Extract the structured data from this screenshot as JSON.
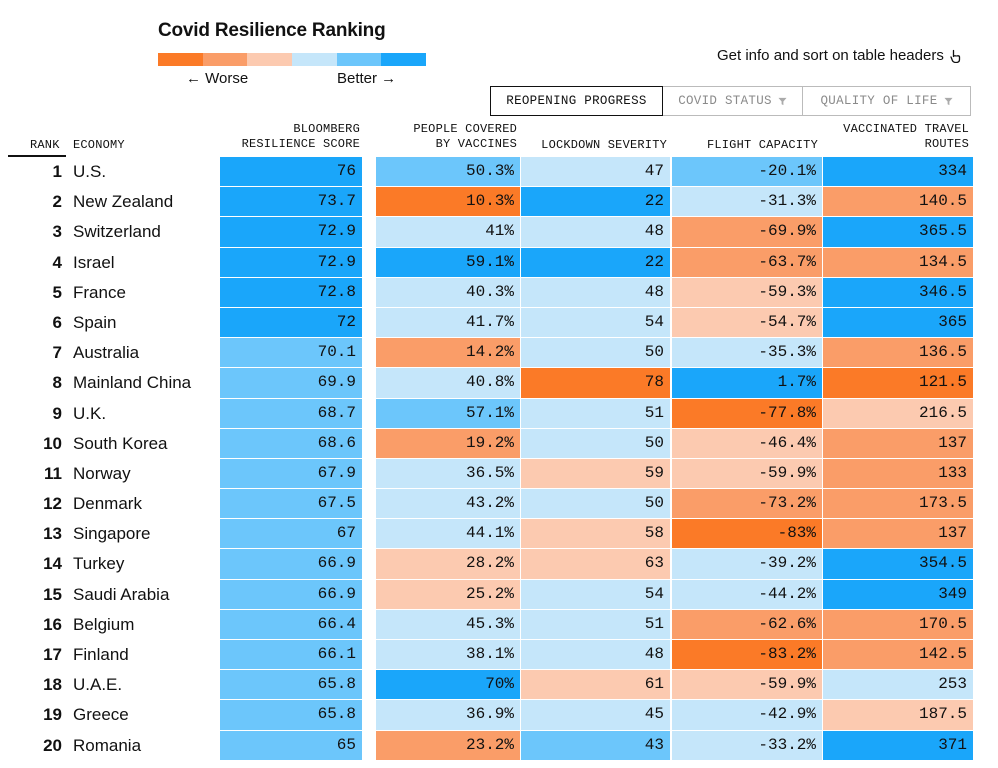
{
  "title": "Covid Resilience Ranking",
  "legend": {
    "colors": [
      "#fb7a27",
      "#fa9d68",
      "#fccab0",
      "#c5e6fa",
      "#6cc6fb",
      "#1aa6fa"
    ],
    "worse_label": "← Worse",
    "better_label": "Better →"
  },
  "hint": "Get info and sort on table headers",
  "tabs": [
    {
      "label": "REOPENING PROGRESS",
      "active": true
    },
    {
      "label": "COVID STATUS",
      "active": false
    },
    {
      "label": "QUALITY OF LIFE",
      "active": false
    }
  ],
  "headers": {
    "rank": "RANK",
    "economy": "ECONOMY",
    "score_l1": "BLOOMBERG",
    "score_l2": "RESILIENCE SCORE",
    "vax_l1": "PEOPLE COVERED",
    "vax_l2": "BY VACCINES",
    "lockdown": "LOCKDOWN SEVERITY",
    "flight": "FLIGHT CAPACITY",
    "routes_l1": "VACCINATED TRAVEL",
    "routes_l2": "ROUTES"
  },
  "palette": {
    "o1": "#fb7a27",
    "o2": "#fa9d68",
    "o3": "#fccab0",
    "b1": "#c5e6fa",
    "b2": "#6cc6fb",
    "b3": "#1aa6fa"
  },
  "rows": [
    {
      "rank": "1",
      "economy": "U.S.",
      "score": "76",
      "score_c": "b3",
      "vax": "50.3%",
      "vax_c": "b2",
      "lock": "47",
      "lock_c": "b1",
      "flight": "-20.1%",
      "flight_c": "b2",
      "routes": "334",
      "routes_c": "b3"
    },
    {
      "rank": "2",
      "economy": "New Zealand",
      "score": "73.7",
      "score_c": "b3",
      "vax": "10.3%",
      "vax_c": "o1",
      "lock": "22",
      "lock_c": "b3",
      "flight": "-31.3%",
      "flight_c": "b1",
      "routes": "140.5",
      "routes_c": "o2"
    },
    {
      "rank": "3",
      "economy": "Switzerland",
      "score": "72.9",
      "score_c": "b3",
      "vax": "41%",
      "vax_c": "b1",
      "lock": "48",
      "lock_c": "b1",
      "flight": "-69.9%",
      "flight_c": "o2",
      "routes": "365.5",
      "routes_c": "b3"
    },
    {
      "rank": "4",
      "economy": "Israel",
      "score": "72.9",
      "score_c": "b3",
      "vax": "59.1%",
      "vax_c": "b3",
      "lock": "22",
      "lock_c": "b3",
      "flight": "-63.7%",
      "flight_c": "o2",
      "routes": "134.5",
      "routes_c": "o2"
    },
    {
      "rank": "5",
      "economy": "France",
      "score": "72.8",
      "score_c": "b3",
      "vax": "40.3%",
      "vax_c": "b1",
      "lock": "48",
      "lock_c": "b1",
      "flight": "-59.3%",
      "flight_c": "o3",
      "routes": "346.5",
      "routes_c": "b3"
    },
    {
      "rank": "6",
      "economy": "Spain",
      "score": "72",
      "score_c": "b3",
      "vax": "41.7%",
      "vax_c": "b1",
      "lock": "54",
      "lock_c": "b1",
      "flight": "-54.7%",
      "flight_c": "o3",
      "routes": "365",
      "routes_c": "b3"
    },
    {
      "rank": "7",
      "economy": "Australia",
      "score": "70.1",
      "score_c": "b2",
      "vax": "14.2%",
      "vax_c": "o2",
      "lock": "50",
      "lock_c": "b1",
      "flight": "-35.3%",
      "flight_c": "b1",
      "routes": "136.5",
      "routes_c": "o2"
    },
    {
      "rank": "8",
      "economy": "Mainland China",
      "score": "69.9",
      "score_c": "b2",
      "vax": "40.8%",
      "vax_c": "b1",
      "lock": "78",
      "lock_c": "o1",
      "flight": "1.7%",
      "flight_c": "b3",
      "routes": "121.5",
      "routes_c": "o1"
    },
    {
      "rank": "9",
      "economy": "U.K.",
      "score": "68.7",
      "score_c": "b2",
      "vax": "57.1%",
      "vax_c": "b2",
      "lock": "51",
      "lock_c": "b1",
      "flight": "-77.8%",
      "flight_c": "o1",
      "routes": "216.5",
      "routes_c": "o3"
    },
    {
      "rank": "10",
      "economy": "South Korea",
      "score": "68.6",
      "score_c": "b2",
      "vax": "19.2%",
      "vax_c": "o2",
      "lock": "50",
      "lock_c": "b1",
      "flight": "-46.4%",
      "flight_c": "o3",
      "routes": "137",
      "routes_c": "o2"
    },
    {
      "rank": "11",
      "economy": "Norway",
      "score": "67.9",
      "score_c": "b2",
      "vax": "36.5%",
      "vax_c": "b1",
      "lock": "59",
      "lock_c": "o3",
      "flight": "-59.9%",
      "flight_c": "o3",
      "routes": "133",
      "routes_c": "o2"
    },
    {
      "rank": "12",
      "economy": "Denmark",
      "score": "67.5",
      "score_c": "b2",
      "vax": "43.2%",
      "vax_c": "b1",
      "lock": "50",
      "lock_c": "b1",
      "flight": "-73.2%",
      "flight_c": "o2",
      "routes": "173.5",
      "routes_c": "o2"
    },
    {
      "rank": "13",
      "economy": "Singapore",
      "score": "67",
      "score_c": "b2",
      "vax": "44.1%",
      "vax_c": "b1",
      "lock": "58",
      "lock_c": "o3",
      "flight": "-83%",
      "flight_c": "o1",
      "routes": "137",
      "routes_c": "o2"
    },
    {
      "rank": "14",
      "economy": "Turkey",
      "score": "66.9",
      "score_c": "b2",
      "vax": "28.2%",
      "vax_c": "o3",
      "lock": "63",
      "lock_c": "o3",
      "flight": "-39.2%",
      "flight_c": "b1",
      "routes": "354.5",
      "routes_c": "b3"
    },
    {
      "rank": "15",
      "economy": "Saudi Arabia",
      "score": "66.9",
      "score_c": "b2",
      "vax": "25.2%",
      "vax_c": "o3",
      "lock": "54",
      "lock_c": "b1",
      "flight": "-44.2%",
      "flight_c": "b1",
      "routes": "349",
      "routes_c": "b3"
    },
    {
      "rank": "16",
      "economy": "Belgium",
      "score": "66.4",
      "score_c": "b2",
      "vax": "45.3%",
      "vax_c": "b1",
      "lock": "51",
      "lock_c": "b1",
      "flight": "-62.6%",
      "flight_c": "o2",
      "routes": "170.5",
      "routes_c": "o2"
    },
    {
      "rank": "17",
      "economy": "Finland",
      "score": "66.1",
      "score_c": "b2",
      "vax": "38.1%",
      "vax_c": "b1",
      "lock": "48",
      "lock_c": "b1",
      "flight": "-83.2%",
      "flight_c": "o1",
      "routes": "142.5",
      "routes_c": "o2"
    },
    {
      "rank": "18",
      "economy": "U.A.E.",
      "score": "65.8",
      "score_c": "b2",
      "vax": "70%",
      "vax_c": "b3",
      "lock": "61",
      "lock_c": "o3",
      "flight": "-59.9%",
      "flight_c": "o3",
      "routes": "253",
      "routes_c": "b1"
    },
    {
      "rank": "19",
      "economy": "Greece",
      "score": "65.8",
      "score_c": "b2",
      "vax": "36.9%",
      "vax_c": "b1",
      "lock": "45",
      "lock_c": "b1",
      "flight": "-42.9%",
      "flight_c": "b1",
      "routes": "187.5",
      "routes_c": "o3"
    },
    {
      "rank": "20",
      "economy": "Romania",
      "score": "65",
      "score_c": "b2",
      "vax": "23.2%",
      "vax_c": "o2",
      "lock": "43",
      "lock_c": "b2",
      "flight": "-33.2%",
      "flight_c": "b1",
      "routes": "371",
      "routes_c": "b3"
    }
  ]
}
